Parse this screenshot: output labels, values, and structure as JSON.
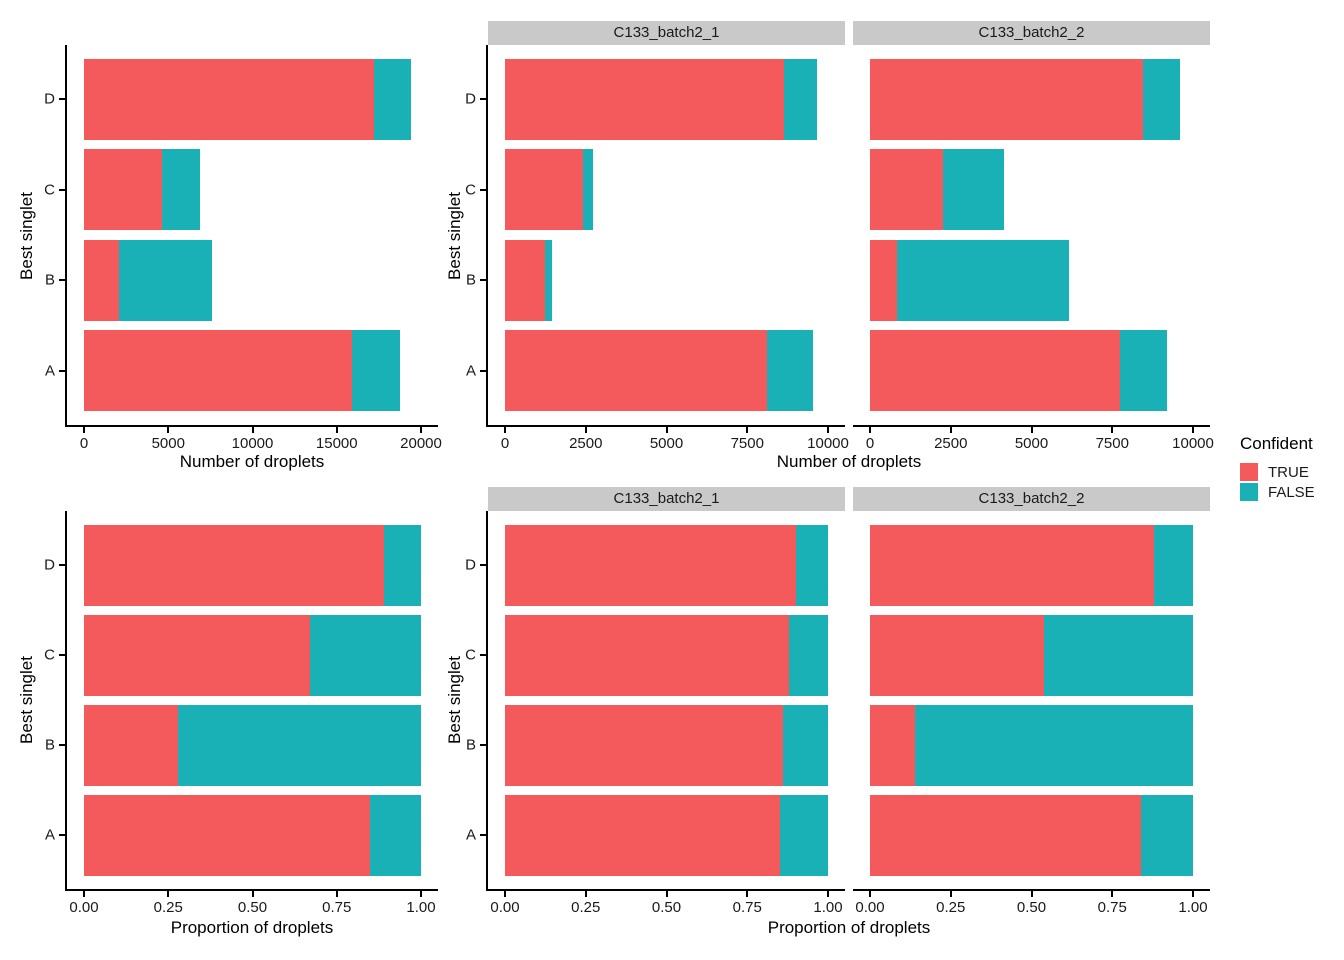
{
  "figure": {
    "legend": {
      "title": "Confident",
      "items": [
        {
          "label": "TRUE",
          "color": "#f4595b"
        },
        {
          "label": "FALSE",
          "color": "#19b0b6"
        }
      ]
    },
    "colors": {
      "true_fill": "#f4595b",
      "false_fill": "#19b0b6",
      "strip_background": "#c9c9c9",
      "axis_line": "#000000"
    }
  },
  "labels": {
    "y_axis_title": "Best singlet",
    "x_axis_title_counts": "Number of droplets",
    "x_axis_title_proportions": "Proportion of droplets",
    "facet1": "C133_batch2_1",
    "facet2": "C133_batch2_2"
  },
  "chart_data": [
    {
      "type": "bar",
      "stacked": true,
      "orientation": "horizontal",
      "row": "counts",
      "facet": null,
      "categories": [
        "A",
        "B",
        "C",
        "D"
      ],
      "series": [
        {
          "name": "TRUE",
          "values": [
            15900,
            2100,
            4650,
            17200
          ]
        },
        {
          "name": "FALSE",
          "values": [
            2850,
            5500,
            2250,
            2200
          ]
        }
      ],
      "xlabel": "Number of droplets",
      "ylabel": "Best singlet",
      "xlim": [
        0,
        20000
      ],
      "grid": false,
      "legend_position": "right",
      "xticks": [
        {
          "v": 0,
          "label": "0"
        },
        {
          "v": 5000,
          "label": "5000"
        },
        {
          "v": 10000,
          "label": "10000"
        },
        {
          "v": 15000,
          "label": "15000"
        },
        {
          "v": 20000,
          "label": "20000"
        }
      ]
    },
    {
      "type": "bar",
      "stacked": true,
      "orientation": "horizontal",
      "row": "counts",
      "facet": "C133_batch2_1",
      "categories": [
        "A",
        "B",
        "C",
        "D"
      ],
      "series": [
        {
          "name": "TRUE",
          "values": [
            8100,
            1250,
            2400,
            8650
          ]
        },
        {
          "name": "FALSE",
          "values": [
            1430,
            200,
            330,
            1000
          ]
        }
      ],
      "xlabel": "Number of droplets",
      "ylabel": "Best singlet",
      "xlim": [
        0,
        10000
      ],
      "grid": false,
      "legend_position": "right",
      "xticks": [
        {
          "v": 0,
          "label": "0"
        },
        {
          "v": 2500,
          "label": "2500"
        },
        {
          "v": 5000,
          "label": "5000"
        },
        {
          "v": 7500,
          "label": "7500"
        },
        {
          "v": 10000,
          "label": "10000"
        }
      ]
    },
    {
      "type": "bar",
      "stacked": true,
      "orientation": "horizontal",
      "row": "counts",
      "facet": "C133_batch2_2",
      "categories": [
        "A",
        "B",
        "C",
        "D"
      ],
      "series": [
        {
          "name": "TRUE",
          "values": [
            7750,
            850,
            2250,
            8450
          ]
        },
        {
          "name": "FALSE",
          "values": [
            1450,
            5300,
            1900,
            1150
          ]
        }
      ],
      "xlabel": "Number of droplets",
      "ylabel": "Best singlet",
      "xlim": [
        0,
        10000
      ],
      "grid": false,
      "legend_position": "right",
      "xticks": [
        {
          "v": 0,
          "label": "0"
        },
        {
          "v": 2500,
          "label": "2500"
        },
        {
          "v": 5000,
          "label": "5000"
        },
        {
          "v": 7500,
          "label": "7500"
        },
        {
          "v": 10000,
          "label": "10000"
        }
      ]
    },
    {
      "type": "bar",
      "stacked": true,
      "orientation": "horizontal",
      "row": "proportions",
      "facet": null,
      "categories": [
        "A",
        "B",
        "C",
        "D"
      ],
      "series": [
        {
          "name": "TRUE",
          "values": [
            0.85,
            0.28,
            0.67,
            0.89
          ]
        },
        {
          "name": "FALSE",
          "values": [
            0.15,
            0.72,
            0.33,
            0.11
          ]
        }
      ],
      "xlabel": "Proportion of droplets",
      "ylabel": "Best singlet",
      "xlim": [
        0,
        1
      ],
      "grid": false,
      "legend_position": "right",
      "xticks": [
        {
          "v": 0,
          "label": "0.00"
        },
        {
          "v": 0.25,
          "label": "0.25"
        },
        {
          "v": 0.5,
          "label": "0.50"
        },
        {
          "v": 0.75,
          "label": "0.75"
        },
        {
          "v": 1,
          "label": "1.00"
        }
      ]
    },
    {
      "type": "bar",
      "stacked": true,
      "orientation": "horizontal",
      "row": "proportions",
      "facet": "C133_batch2_1",
      "categories": [
        "A",
        "B",
        "C",
        "D"
      ],
      "series": [
        {
          "name": "TRUE",
          "values": [
            0.85,
            0.86,
            0.88,
            0.9
          ]
        },
        {
          "name": "FALSE",
          "values": [
            0.15,
            0.14,
            0.12,
            0.1
          ]
        }
      ],
      "xlabel": "Proportion of droplets",
      "ylabel": "Best singlet",
      "xlim": [
        0,
        1
      ],
      "grid": false,
      "legend_position": "right",
      "xticks": [
        {
          "v": 0,
          "label": "0.00"
        },
        {
          "v": 0.25,
          "label": "0.25"
        },
        {
          "v": 0.5,
          "label": "0.50"
        },
        {
          "v": 0.75,
          "label": "0.75"
        },
        {
          "v": 1,
          "label": "1.00"
        }
      ]
    },
    {
      "type": "bar",
      "stacked": true,
      "orientation": "horizontal",
      "row": "proportions",
      "facet": "C133_batch2_2",
      "categories": [
        "A",
        "B",
        "C",
        "D"
      ],
      "series": [
        {
          "name": "TRUE",
          "values": [
            0.84,
            0.14,
            0.54,
            0.88
          ]
        },
        {
          "name": "FALSE",
          "values": [
            0.16,
            0.86,
            0.46,
            0.12
          ]
        }
      ],
      "xlabel": "Proportion of droplets",
      "ylabel": "Best singlet",
      "xlim": [
        0,
        1
      ],
      "grid": false,
      "legend_position": "right",
      "xticks": [
        {
          "v": 0,
          "label": "0.00"
        },
        {
          "v": 0.25,
          "label": "0.25"
        },
        {
          "v": 0.5,
          "label": "0.50"
        },
        {
          "v": 0.75,
          "label": "0.75"
        },
        {
          "v": 1,
          "label": "1.00"
        }
      ]
    }
  ]
}
